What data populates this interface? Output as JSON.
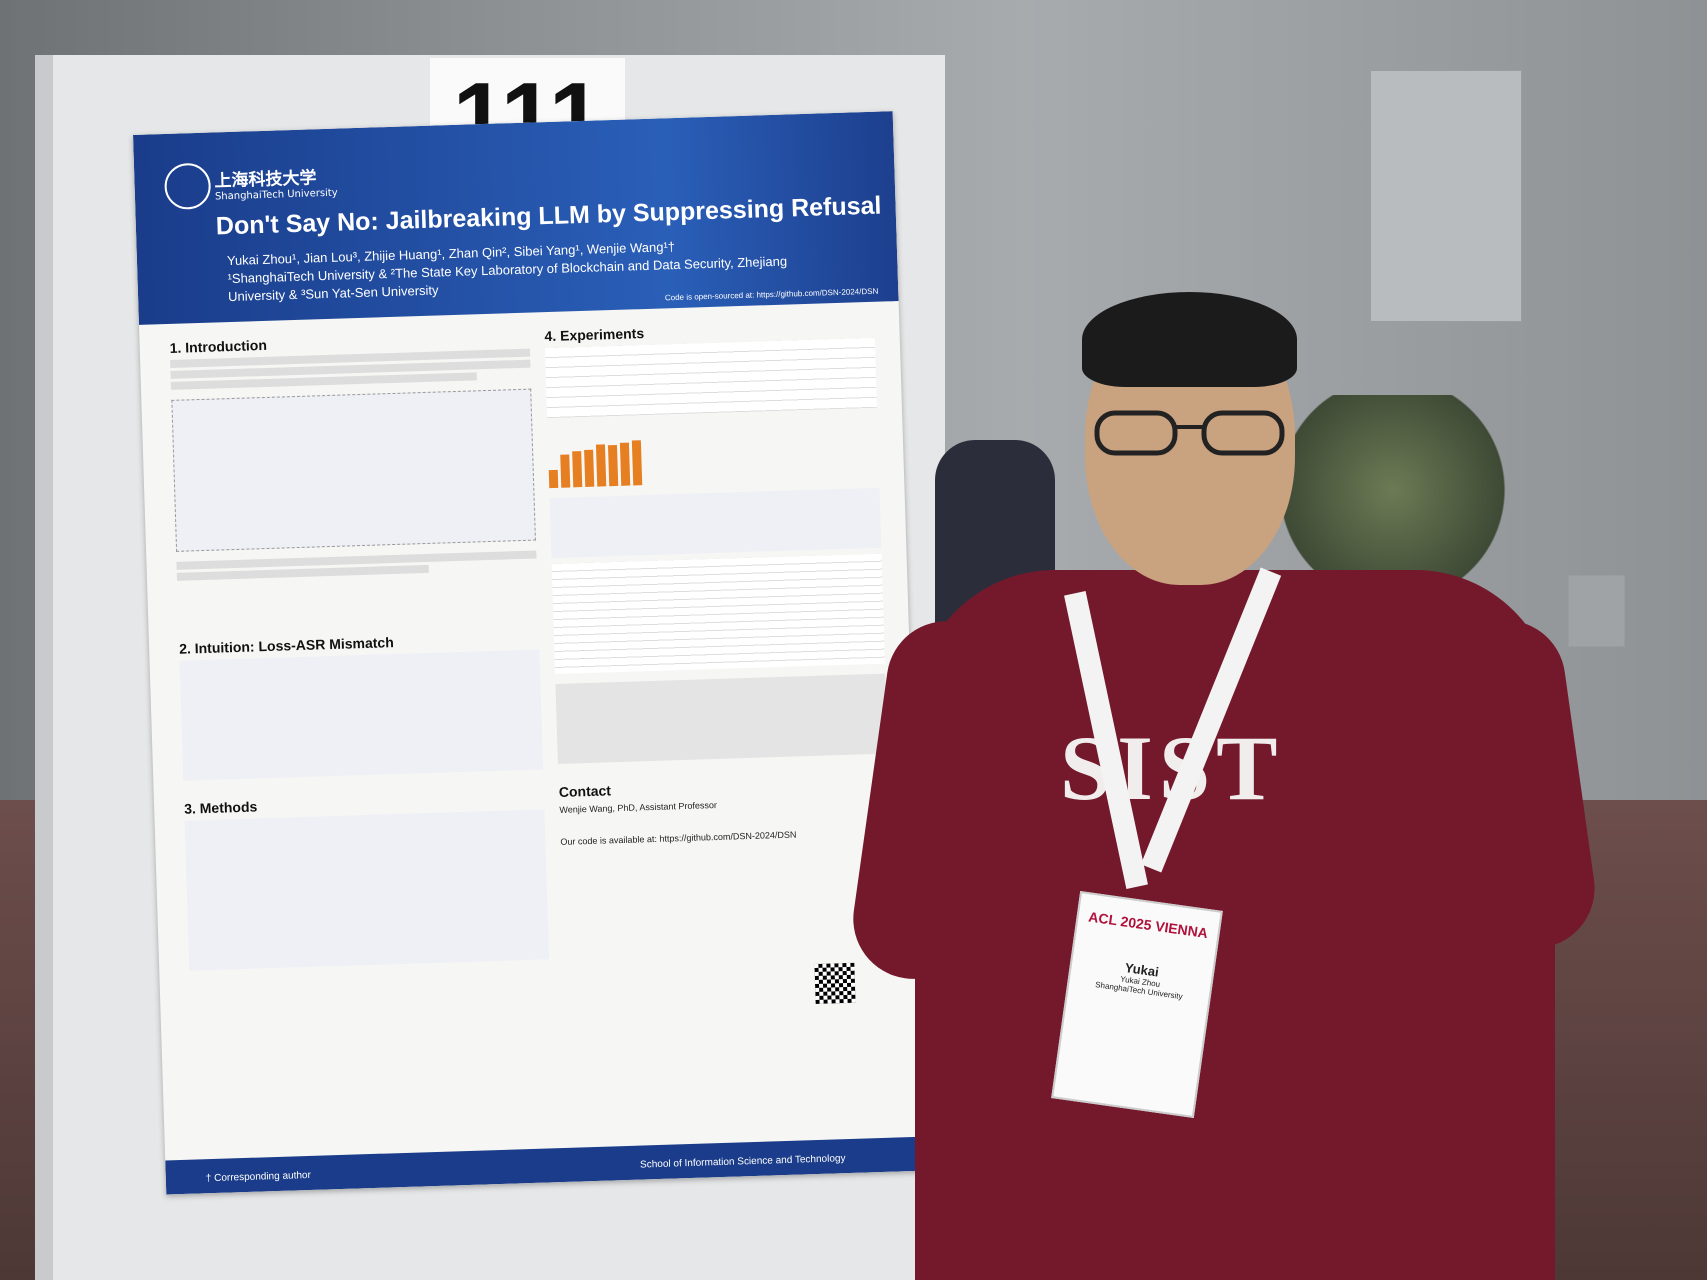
{
  "booth_number": "111",
  "poster": {
    "university_cn": "上海科技大学",
    "university_en": "ShanghaiTech University",
    "title": "Don't Say No: Jailbreaking LLM by Suppressing Refusal",
    "authors": "Yukai Zhou¹, Jian Lou³, Zhijie Huang¹, Zhan Qin², Sibei Yang¹, Wenjie Wang¹†",
    "affiliations": "¹ShanghaiTech University & ²The State Key Laboratory of Blockchain and Data Security, Zhejiang University & ³Sun Yat-Sen University",
    "code_note": "Code is open-sourced at: https://github.com/DSN-2024/DSN",
    "sections": [
      "1. Introduction",
      "2. Intuition:   Loss-ASR Mismatch",
      "3. Methods",
      "4. Experiments",
      "Contact"
    ],
    "contact_text": "Wenjie Wang, PhD, Assistant Professor",
    "contact_code": "Our code is available at: https://github.com/DSN-2024/DSN",
    "footer_left": "† Corresponding author",
    "footer_right": "School of Information Science and Technology",
    "bar_values": [
      0.3,
      0.55,
      0.6,
      0.62,
      0.7,
      0.68,
      0.72,
      0.75
    ]
  },
  "shirt_text": "SIST",
  "badge": {
    "event": "ACL 2025 VIENNA",
    "name": "Yukai",
    "subname": "Yukai Zhou",
    "org": "ShanghaiTech University"
  }
}
